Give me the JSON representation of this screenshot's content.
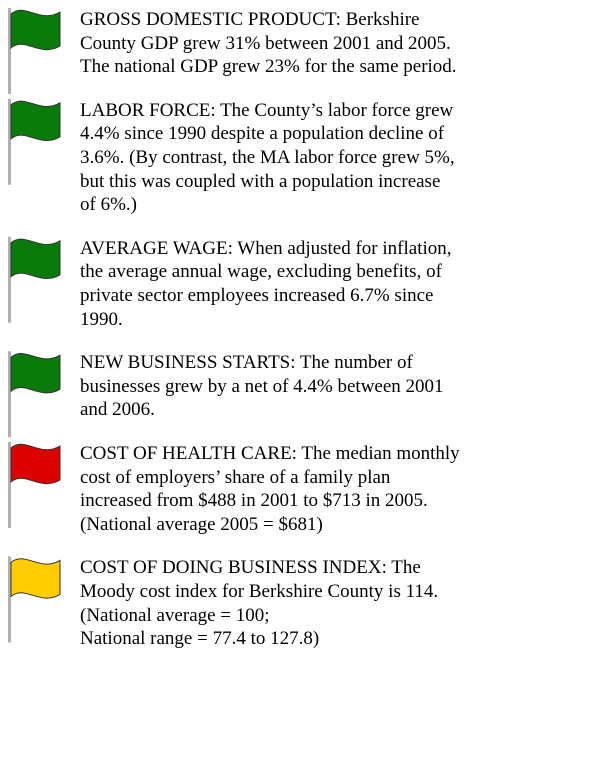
{
  "items": [
    {
      "flag_color": "#0a7a0a",
      "lines": [
        "GROSS DOMESTIC PRODUCT:  Berkshire",
        "County GDP grew 31% between 2001 and 2005.",
        "The national GDP grew 23% for the same period."
      ]
    },
    {
      "flag_color": "#0a7a0a",
      "lines": [
        "LABOR FORCE:  The County’s labor force grew",
        "4.4% since 1990 despite a population decline of",
        "3.6%. (By contrast, the MA labor force grew 5%,",
        "but this was coupled with a population increase",
        "of 6%.)"
      ]
    },
    {
      "flag_color": "#0a7a0a",
      "lines": [
        "AVERAGE WAGE: When adjusted for inflation,",
        "the average annual wage, excluding benefits, of",
        "private sector employees increased 6.7% since",
        "1990."
      ]
    },
    {
      "flag_color": "#0a7a0a",
      "lines": [
        "NEW BUSINESS STARTS: The number of",
        "businesses grew by a net of 4.4% between 2001",
        "and 2006."
      ]
    },
    {
      "flag_color": "#dd0000",
      "lines": [
        "COST OF HEALTH CARE: The median monthly",
        "cost of employers’ share of a family plan",
        "increased from $488 in 2001 to $713 in 2005.",
        "(National average 2005 = $681)"
      ]
    },
    {
      "flag_color": "#ffcc00",
      "lines": [
        "COST OF DOING BUSINESS INDEX: The",
        "Moody cost index for Berkshire County is 114.",
        "(National average = 100;",
        "National range = 77.4 to 127.8)"
      ]
    }
  ]
}
